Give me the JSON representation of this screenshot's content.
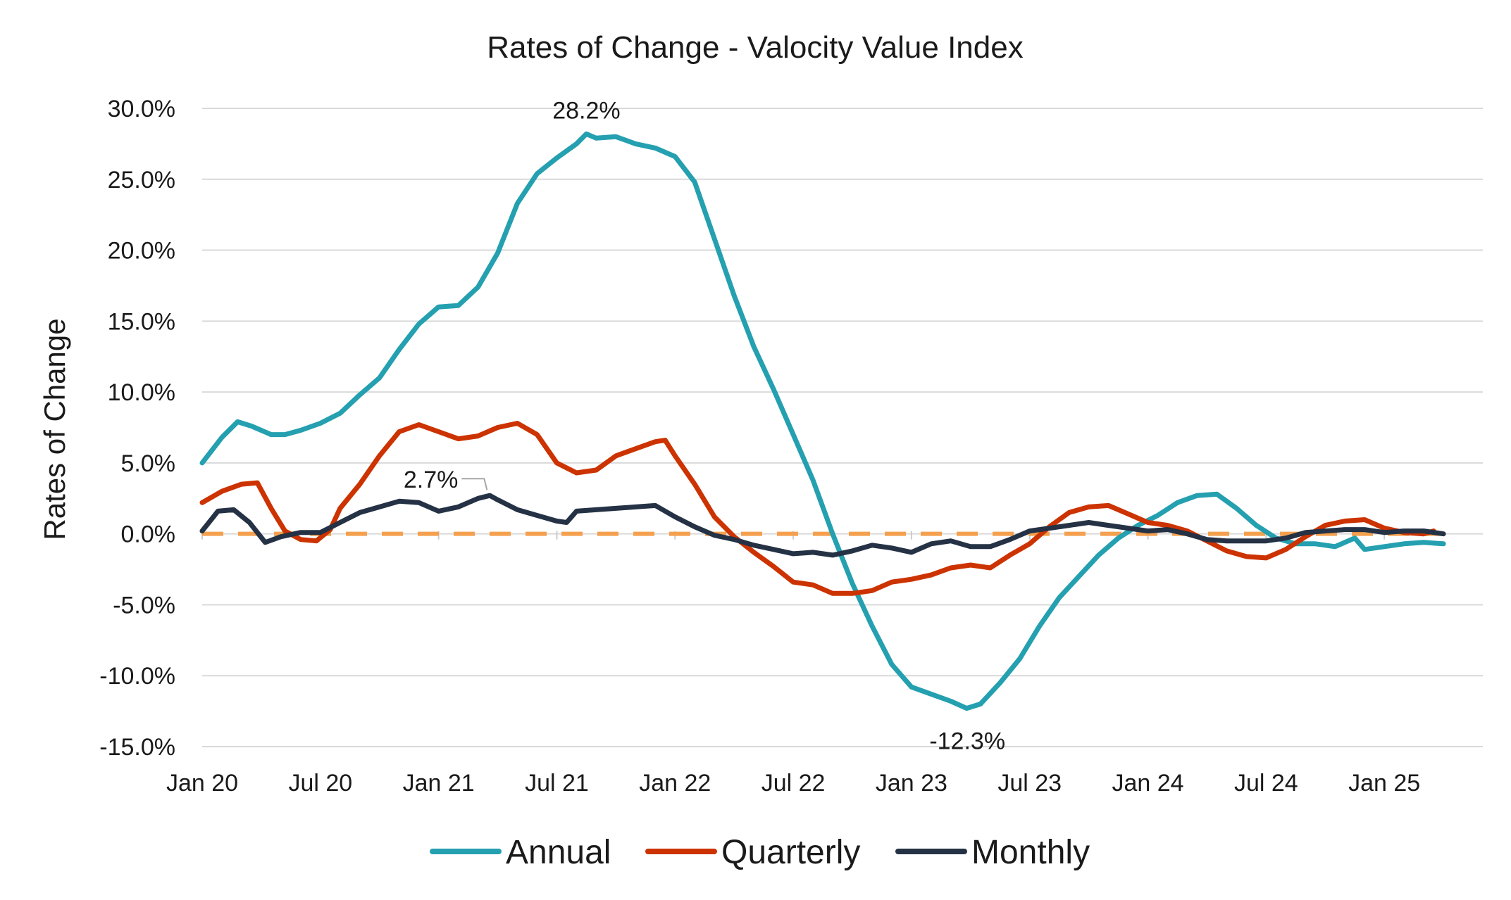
{
  "chart_data": {
    "type": "line",
    "title": "Rates of Change - Valocity Value Index",
    "xlabel": "",
    "ylabel": "Rates of Change",
    "ylim": [
      -15,
      30
    ],
    "y_ticks": [
      {
        "value": 30,
        "label": "30.0%"
      },
      {
        "value": 25,
        "label": "25.0%"
      },
      {
        "value": 20,
        "label": "20.0%"
      },
      {
        "value": 15,
        "label": "15.0%"
      },
      {
        "value": 10,
        "label": "10.0%"
      },
      {
        "value": 5,
        "label": "5.0%"
      },
      {
        "value": 0,
        "label": "0.0%"
      },
      {
        "value": -5,
        "label": "-5.0%"
      },
      {
        "value": -10,
        "label": "-10.0%"
      },
      {
        "value": -15,
        "label": "-15.0%"
      }
    ],
    "x_range_months": [
      0,
      65
    ],
    "x_ticks": [
      {
        "month": 0,
        "label": "Jan 20"
      },
      {
        "month": 6,
        "label": "Jul 20"
      },
      {
        "month": 12,
        "label": "Jan 21"
      },
      {
        "month": 18,
        "label": "Jul 21"
      },
      {
        "month": 24,
        "label": "Jan 22"
      },
      {
        "month": 30,
        "label": "Jul 22"
      },
      {
        "month": 36,
        "label": "Jan 23"
      },
      {
        "month": 42,
        "label": "Jul 23"
      },
      {
        "month": 48,
        "label": "Jan 24"
      },
      {
        "month": 54,
        "label": "Jul 24"
      },
      {
        "month": 60,
        "label": "Jan 25"
      }
    ],
    "grid": true,
    "legend_position": "bottom",
    "reference_line": {
      "value": 0,
      "color": "#f4a04e",
      "style": "dashed"
    },
    "series": [
      {
        "name": "Annual",
        "color": "#24a0b0",
        "points": [
          [
            0,
            5.0
          ],
          [
            1,
            6.8
          ],
          [
            1.8,
            7.9
          ],
          [
            2.5,
            7.6
          ],
          [
            3.5,
            7.0
          ],
          [
            4.2,
            7.0
          ],
          [
            5,
            7.3
          ],
          [
            6,
            7.8
          ],
          [
            7,
            8.5
          ],
          [
            8,
            9.8
          ],
          [
            9,
            11.0
          ],
          [
            10,
            13.0
          ],
          [
            11,
            14.8
          ],
          [
            12,
            16.0
          ],
          [
            13,
            16.1
          ],
          [
            14,
            17.4
          ],
          [
            15,
            19.8
          ],
          [
            16,
            23.3
          ],
          [
            17,
            25.4
          ],
          [
            18,
            26.5
          ],
          [
            19,
            27.5
          ],
          [
            19.5,
            28.2
          ],
          [
            20,
            27.9
          ],
          [
            21,
            28.0
          ],
          [
            22,
            27.5
          ],
          [
            23,
            27.2
          ],
          [
            24,
            26.6
          ],
          [
            25,
            24.8
          ],
          [
            26,
            20.8
          ],
          [
            27,
            16.8
          ],
          [
            28,
            13.2
          ],
          [
            29,
            10.2
          ],
          [
            30,
            7.0
          ],
          [
            31,
            3.8
          ],
          [
            32,
            0.0
          ],
          [
            33,
            -3.5
          ],
          [
            34,
            -6.5
          ],
          [
            35,
            -9.2
          ],
          [
            36,
            -10.8
          ],
          [
            37,
            -11.3
          ],
          [
            38,
            -11.8
          ],
          [
            38.8,
            -12.3
          ],
          [
            39.5,
            -12.0
          ],
          [
            40.5,
            -10.5
          ],
          [
            41.5,
            -8.8
          ],
          [
            42.5,
            -6.5
          ],
          [
            43.5,
            -4.5
          ],
          [
            44.5,
            -3.0
          ],
          [
            45.5,
            -1.5
          ],
          [
            46.5,
            -0.3
          ],
          [
            47.5,
            0.6
          ],
          [
            48.5,
            1.3
          ],
          [
            49.5,
            2.2
          ],
          [
            50.5,
            2.7
          ],
          [
            51.5,
            2.8
          ],
          [
            52.5,
            1.8
          ],
          [
            53.5,
            0.6
          ],
          [
            54.5,
            -0.3
          ],
          [
            55.5,
            -0.7
          ],
          [
            56.5,
            -0.7
          ],
          [
            57.5,
            -0.9
          ],
          [
            58.5,
            -0.3
          ],
          [
            59,
            -1.1
          ],
          [
            60,
            -0.9
          ],
          [
            61,
            -0.7
          ],
          [
            62,
            -0.6
          ],
          [
            63,
            -0.7
          ]
        ]
      },
      {
        "name": "Quarterly",
        "color": "#cc3300",
        "points": [
          [
            0,
            2.2
          ],
          [
            1,
            3.0
          ],
          [
            2,
            3.5
          ],
          [
            2.8,
            3.6
          ],
          [
            3.5,
            1.8
          ],
          [
            4.2,
            0.2
          ],
          [
            5,
            -0.4
          ],
          [
            5.8,
            -0.5
          ],
          [
            6.5,
            0.3
          ],
          [
            7,
            1.8
          ],
          [
            8,
            3.5
          ],
          [
            9,
            5.5
          ],
          [
            10,
            7.2
          ],
          [
            11,
            7.7
          ],
          [
            12,
            7.2
          ],
          [
            13,
            6.7
          ],
          [
            14,
            6.9
          ],
          [
            15,
            7.5
          ],
          [
            16,
            7.8
          ],
          [
            17,
            7.0
          ],
          [
            18,
            5.0
          ],
          [
            19,
            4.3
          ],
          [
            20,
            4.5
          ],
          [
            21,
            5.5
          ],
          [
            22,
            6.0
          ],
          [
            23,
            6.5
          ],
          [
            23.5,
            6.6
          ],
          [
            24,
            5.5
          ],
          [
            25,
            3.5
          ],
          [
            26,
            1.2
          ],
          [
            27,
            -0.2
          ],
          [
            28,
            -1.3
          ],
          [
            29,
            -2.3
          ],
          [
            30,
            -3.4
          ],
          [
            31,
            -3.6
          ],
          [
            32,
            -4.2
          ],
          [
            33,
            -4.2
          ],
          [
            34,
            -4.0
          ],
          [
            35,
            -3.4
          ],
          [
            36,
            -3.2
          ],
          [
            37,
            -2.9
          ],
          [
            38,
            -2.4
          ],
          [
            39,
            -2.2
          ],
          [
            40,
            -2.4
          ],
          [
            41,
            -1.5
          ],
          [
            42,
            -0.7
          ],
          [
            43,
            0.5
          ],
          [
            44,
            1.5
          ],
          [
            45,
            1.9
          ],
          [
            46,
            2.0
          ],
          [
            47,
            1.4
          ],
          [
            48,
            0.8
          ],
          [
            49,
            0.6
          ],
          [
            50,
            0.2
          ],
          [
            51,
            -0.5
          ],
          [
            52,
            -1.2
          ],
          [
            53,
            -1.6
          ],
          [
            54,
            -1.7
          ],
          [
            55,
            -1.1
          ],
          [
            56,
            -0.2
          ],
          [
            57,
            0.6
          ],
          [
            58,
            0.9
          ],
          [
            59,
            1.0
          ],
          [
            60,
            0.4
          ],
          [
            61,
            0.1
          ],
          [
            62,
            0.0
          ],
          [
            62.5,
            0.2
          ]
        ]
      },
      {
        "name": "Monthly",
        "color": "#253245",
        "points": [
          [
            0,
            0.2
          ],
          [
            0.8,
            1.6
          ],
          [
            1.6,
            1.7
          ],
          [
            2.4,
            0.8
          ],
          [
            3.2,
            -0.6
          ],
          [
            4,
            -0.2
          ],
          [
            5,
            0.1
          ],
          [
            6,
            0.1
          ],
          [
            7,
            0.8
          ],
          [
            8,
            1.5
          ],
          [
            9,
            1.9
          ],
          [
            10,
            2.3
          ],
          [
            11,
            2.2
          ],
          [
            12,
            1.6
          ],
          [
            13,
            1.9
          ],
          [
            14,
            2.5
          ],
          [
            14.6,
            2.7
          ],
          [
            15,
            2.4
          ],
          [
            16,
            1.7
          ],
          [
            17,
            1.3
          ],
          [
            18,
            0.9
          ],
          [
            18.5,
            0.8
          ],
          [
            19,
            1.6
          ],
          [
            20,
            1.7
          ],
          [
            21,
            1.8
          ],
          [
            22,
            1.9
          ],
          [
            23,
            2.0
          ],
          [
            24,
            1.2
          ],
          [
            25,
            0.5
          ],
          [
            26,
            -0.1
          ],
          [
            27,
            -0.4
          ],
          [
            28,
            -0.8
          ],
          [
            29,
            -1.1
          ],
          [
            30,
            -1.4
          ],
          [
            31,
            -1.3
          ],
          [
            32,
            -1.5
          ],
          [
            33,
            -1.2
          ],
          [
            34,
            -0.8
          ],
          [
            35,
            -1.0
          ],
          [
            36,
            -1.3
          ],
          [
            37,
            -0.7
          ],
          [
            38,
            -0.5
          ],
          [
            39,
            -0.9
          ],
          [
            40,
            -0.9
          ],
          [
            41,
            -0.4
          ],
          [
            42,
            0.2
          ],
          [
            43,
            0.4
          ],
          [
            44,
            0.6
          ],
          [
            45,
            0.8
          ],
          [
            46,
            0.6
          ],
          [
            47,
            0.4
          ],
          [
            48,
            0.2
          ],
          [
            49,
            0.3
          ],
          [
            50,
            0.0
          ],
          [
            51,
            -0.4
          ],
          [
            52,
            -0.5
          ],
          [
            53,
            -0.5
          ],
          [
            54,
            -0.5
          ],
          [
            55,
            -0.3
          ],
          [
            56,
            0.1
          ],
          [
            57,
            0.2
          ],
          [
            58,
            0.3
          ],
          [
            59,
            0.3
          ],
          [
            60,
            0.1
          ],
          [
            61,
            0.2
          ],
          [
            62,
            0.2
          ],
          [
            63,
            0.0
          ]
        ]
      }
    ],
    "annotations": [
      {
        "series": "Annual",
        "month": 19.5,
        "value": 28.2,
        "label": "28.2%"
      },
      {
        "series": "Monthly",
        "month": 14.6,
        "value": 2.7,
        "label": "2.7%"
      },
      {
        "series": "Annual",
        "month": 38.8,
        "value": -12.3,
        "label": "-12.3%"
      }
    ]
  }
}
